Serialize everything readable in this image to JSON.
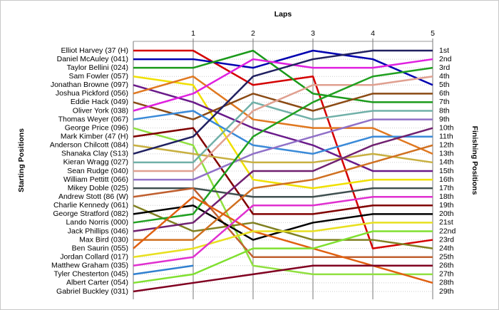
{
  "chart_data": {
    "type": "line",
    "title": "Laps",
    "ylabel": "Starting Positions",
    "y2label": "Finishing Positions",
    "x": [
      0,
      1,
      2,
      3,
      4,
      5
    ],
    "xlim": [
      0,
      5
    ],
    "xticks": [
      1,
      2,
      3,
      4,
      5
    ],
    "ylim": [
      1,
      29
    ],
    "yreverse": true,
    "grid": true,
    "yticks": [
      {
        "value": 1,
        "label": "1st"
      },
      {
        "value": 2,
        "label": "2nd"
      },
      {
        "value": 3,
        "label": "3rd"
      },
      {
        "value": 4,
        "label": "4th"
      },
      {
        "value": 5,
        "label": "5th"
      },
      {
        "value": 6,
        "label": "6th"
      },
      {
        "value": 7,
        "label": "7th"
      },
      {
        "value": 8,
        "label": "8th"
      },
      {
        "value": 9,
        "label": "9th"
      },
      {
        "value": 10,
        "label": "10th"
      },
      {
        "value": 11,
        "label": "11th"
      },
      {
        "value": 12,
        "label": "12th"
      },
      {
        "value": 13,
        "label": "13th"
      },
      {
        "value": 14,
        "label": "14th"
      },
      {
        "value": 15,
        "label": "15th"
      },
      {
        "value": 16,
        "label": "16th"
      },
      {
        "value": 17,
        "label": "17th"
      },
      {
        "value": 18,
        "label": "18th"
      },
      {
        "value": 19,
        "label": "19th"
      },
      {
        "value": 20,
        "label": "20th"
      },
      {
        "value": 21,
        "label": "21st"
      },
      {
        "value": 22,
        "label": "22nd"
      },
      {
        "value": 23,
        "label": "23rd"
      },
      {
        "value": 24,
        "label": "24th"
      },
      {
        "value": 25,
        "label": "25th"
      },
      {
        "value": 26,
        "label": "26th"
      },
      {
        "value": 27,
        "label": "27th"
      },
      {
        "value": 28,
        "label": "28th"
      },
      {
        "value": 29,
        "label": "29th"
      }
    ],
    "series": [
      {
        "name": "Elliot Harvey (37 (H)",
        "color": "#d40000",
        "values": [
          1,
          1,
          5,
          4,
          24,
          23
        ]
      },
      {
        "name": "Daniel McAuley (041)",
        "color": "#0000b0",
        "values": [
          2,
          2,
          3,
          1,
          2,
          5
        ]
      },
      {
        "name": "Taylor Bellini (024)",
        "color": "#1a9a1a",
        "values": [
          3,
          3,
          1,
          6,
          7,
          7
        ]
      },
      {
        "name": "Sam Fowler (057)",
        "color": "#f0e000",
        "values": [
          4,
          5,
          16,
          17,
          16,
          16
        ]
      },
      {
        "name": "Jonathan Browne (097)",
        "color": "#6a1a8a",
        "values": [
          5,
          7,
          10,
          12,
          15,
          15
        ]
      },
      {
        "name": "Joshua Pickford (056)",
        "color": "#e07820",
        "values": [
          6,
          4,
          9,
          10,
          10,
          13
        ]
      },
      {
        "name": "Eddie Hack (049)",
        "color": "#8b4a14",
        "values": [
          7,
          9,
          6,
          8,
          6,
          6
        ]
      },
      {
        "name": "Oliver York (038)",
        "color": "#e020e0",
        "values": [
          8,
          6,
          2,
          3,
          3,
          2
        ]
      },
      {
        "name": "Thomas Weyer (067)",
        "color": "#3a8ad8",
        "values": [
          9,
          8,
          12,
          13,
          11,
          11
        ]
      },
      {
        "name": "George Price (096)",
        "color": "#90e040",
        "values": [
          10,
          12,
          26,
          27,
          27,
          27
        ]
      },
      {
        "name": "Mark Kimber (47 (H)",
        "color": "#800000",
        "values": [
          11,
          10,
          20,
          20,
          19,
          19
        ]
      },
      {
        "name": "Anderson Chilcott (084)",
        "color": "#c8b040",
        "values": [
          12,
          13,
          14,
          14,
          13,
          14
        ]
      },
      {
        "name": "Shanaka Clay (S13)",
        "color": "#202060",
        "values": [
          13,
          11,
          4,
          2,
          1,
          1
        ]
      },
      {
        "name": "Kieran Wragg (027)",
        "color": "#70b0a8",
        "values": [
          14,
          14,
          7,
          9,
          8,
          8
        ]
      },
      {
        "name": "Sean Rudge (040)",
        "color": "#e0a090",
        "values": [
          15,
          15,
          8,
          5,
          5,
          4
        ]
      },
      {
        "name": "William Pettitt (066)",
        "color": "#9070c8",
        "values": [
          16,
          16,
          13,
          11,
          9,
          9
        ]
      },
      {
        "name": "Mikey Doble (025)",
        "color": "#405050",
        "values": [
          17,
          17,
          18,
          18,
          17,
          17
        ]
      },
      {
        "name": "Andrew Stott (86 (W)",
        "color": "#c06030",
        "values": [
          18,
          17,
          25,
          25,
          25,
          25
        ]
      },
      {
        "name": "Charlie Kennedy (061)",
        "color": "#808020",
        "values": [
          19,
          22,
          21,
          23,
          23,
          24
        ]
      },
      {
        "name": "George Stratford (082)",
        "color": "#000000",
        "values": [
          20,
          19,
          23,
          21,
          20,
          20
        ]
      },
      {
        "name": "Lando Norris (000)",
        "color": "#20a020",
        "values": [
          21,
          20,
          11,
          7,
          4,
          3
        ]
      },
      {
        "name": "Jack Phillips (046)",
        "color": "#702070",
        "values": [
          22,
          21,
          15,
          15,
          12,
          10
        ]
      },
      {
        "name": "Max Bird (030)",
        "color": "#d07020",
        "values": [
          23,
          23,
          17,
          16,
          14,
          12
        ]
      },
      {
        "name": "Ben Saurin (055)",
        "color": "#e06010",
        "values": [
          24,
          18,
          22,
          24,
          26,
          28
        ]
      },
      {
        "name": "Jordan Collard (017)",
        "color": "#e8e020",
        "values": [
          25,
          24,
          22,
          22,
          21,
          21
        ]
      },
      {
        "name": "Matthew Graham (035)",
        "color": "#e030d0",
        "values": [
          26,
          25,
          19,
          19,
          18,
          18
        ]
      },
      {
        "name": "Tyler Chesterton (045)",
        "color": "#3080d0",
        "values": [
          27,
          26,
          null,
          null,
          null,
          null
        ]
      },
      {
        "name": "Albert Carter (054)",
        "color": "#80e030",
        "values": [
          28,
          27,
          24,
          24,
          22,
          22
        ]
      },
      {
        "name": "Gabriel Buckley (031)",
        "color": "#800020",
        "values": [
          29,
          28,
          27,
          26,
          26,
          26
        ]
      }
    ]
  }
}
